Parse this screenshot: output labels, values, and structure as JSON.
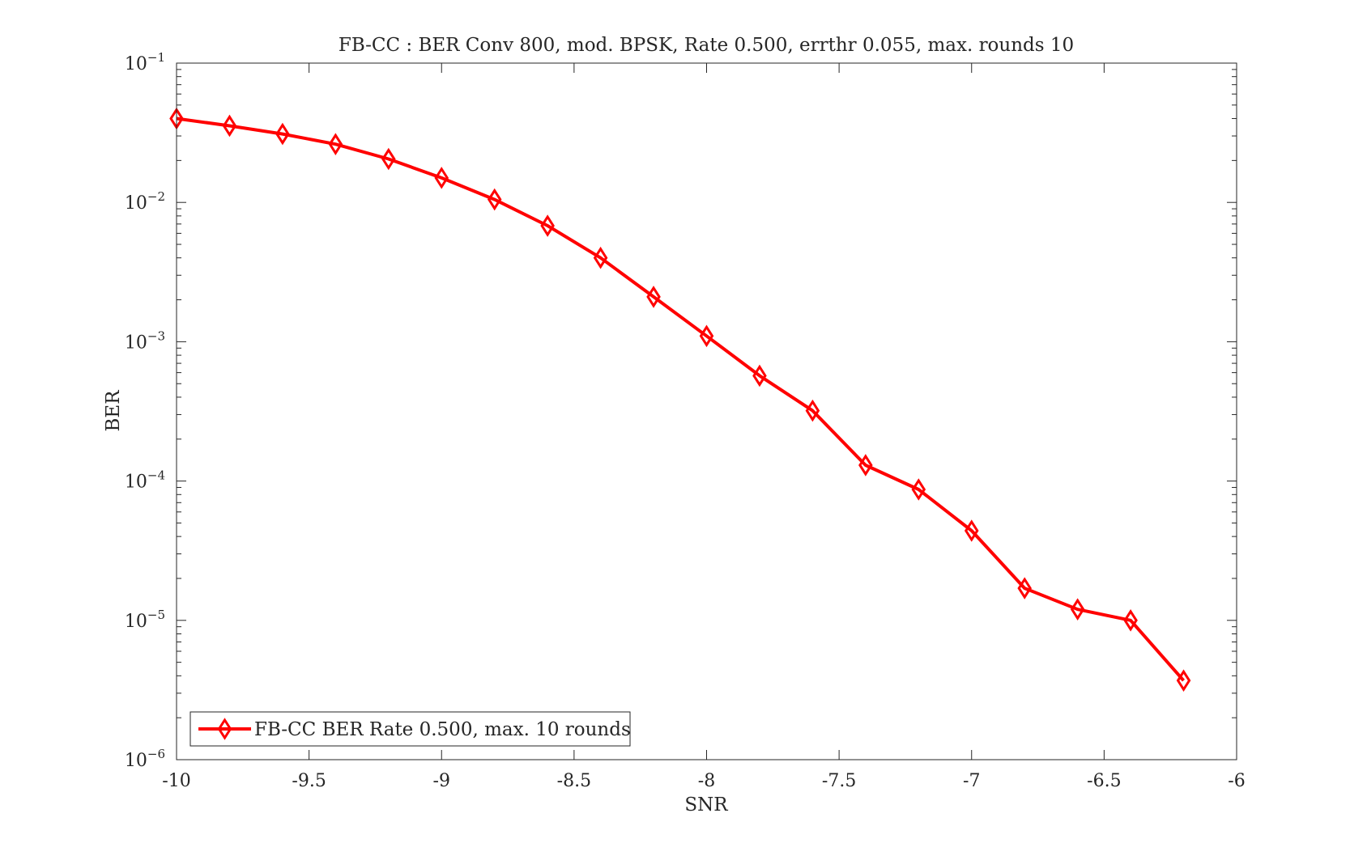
{
  "chart_data": {
    "type": "line",
    "title": "FB-CC : BER Conv 800, mod. BPSK, Rate 0.500, errthr 0.055, max. rounds 10",
    "xlabel": "SNR",
    "ylabel": "BER",
    "xlim": [
      -10,
      -6
    ],
    "ylim": [
      1e-06,
      0.1
    ],
    "yscale": "log",
    "x_ticks": [
      -10,
      -9.5,
      -9,
      -8.5,
      -8,
      -7.5,
      -7,
      -6.5,
      -6
    ],
    "x_tick_labels": [
      "-10",
      "-9.5",
      "-9",
      "-8.5",
      "-8",
      "-7.5",
      "-7",
      "-6.5",
      "-6"
    ],
    "y_ticks": [
      {
        "value": 0.1,
        "base": "10",
        "exp": "−1"
      },
      {
        "value": 0.01,
        "base": "10",
        "exp": "−2"
      },
      {
        "value": 0.001,
        "base": "10",
        "exp": "−3"
      },
      {
        "value": 0.0001,
        "base": "10",
        "exp": "−4"
      },
      {
        "value": 1e-05,
        "base": "10",
        "exp": "−5"
      },
      {
        "value": 1e-06,
        "base": "10",
        "exp": "−6"
      }
    ],
    "grid": false,
    "legend_position": "bottom-left",
    "series": [
      {
        "name": "FB-CC BER Rate 0.500, max. 10 rounds",
        "color": "#ff0000",
        "marker": "diamond",
        "x": [
          -10,
          -9.8,
          -9.6,
          -9.4,
          -9.2,
          -9,
          -8.8,
          -8.6,
          -8.4,
          -8.2,
          -8,
          -7.8,
          -7.6,
          -7.4,
          -7.2,
          -7,
          -6.8,
          -6.6,
          -6.4,
          -6.2
        ],
        "y": [
          0.04,
          0.0355,
          0.031,
          0.0262,
          0.0205,
          0.015,
          0.0105,
          0.0068,
          0.004,
          0.0021,
          0.0011,
          0.00057,
          0.00032,
          0.00013,
          8.7e-05,
          4.4e-05,
          1.7e-05,
          1.2e-05,
          1e-05,
          3.7e-06
        ]
      }
    ]
  }
}
